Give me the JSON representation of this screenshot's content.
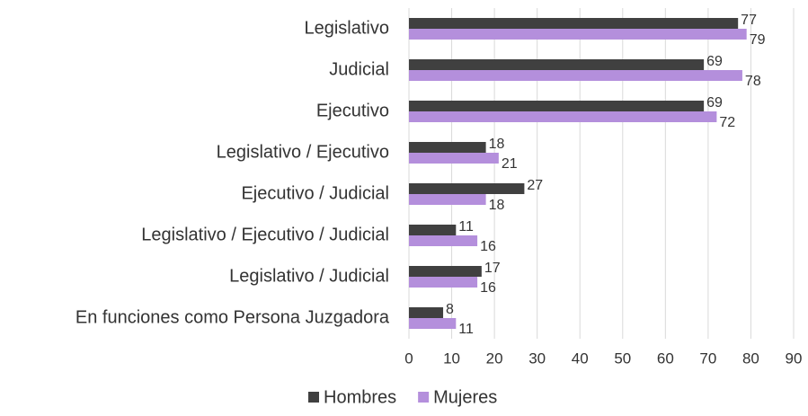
{
  "chart_data": {
    "type": "hbar",
    "categories": [
      "Legislativo",
      "Judicial",
      "Ejecutivo",
      "Legislativo / Ejecutivo",
      "Ejecutivo / Judicial",
      "Legislativo / Ejecutivo / Judicial",
      "Legislativo / Judicial",
      "En funciones como Persona Juzgadora"
    ],
    "series": [
      {
        "name": "Hombres",
        "color": "#404040",
        "values": [
          77,
          69,
          69,
          18,
          27,
          11,
          17,
          8
        ]
      },
      {
        "name": "Mujeres",
        "color": "#b48fdc",
        "values": [
          79,
          78,
          72,
          21,
          18,
          16,
          16,
          11
        ]
      }
    ],
    "xlim": [
      0,
      90
    ],
    "xticks": [
      0,
      10,
      20,
      30,
      40,
      50,
      60,
      70,
      80,
      90
    ],
    "grid": true,
    "legend": "bottom"
  }
}
